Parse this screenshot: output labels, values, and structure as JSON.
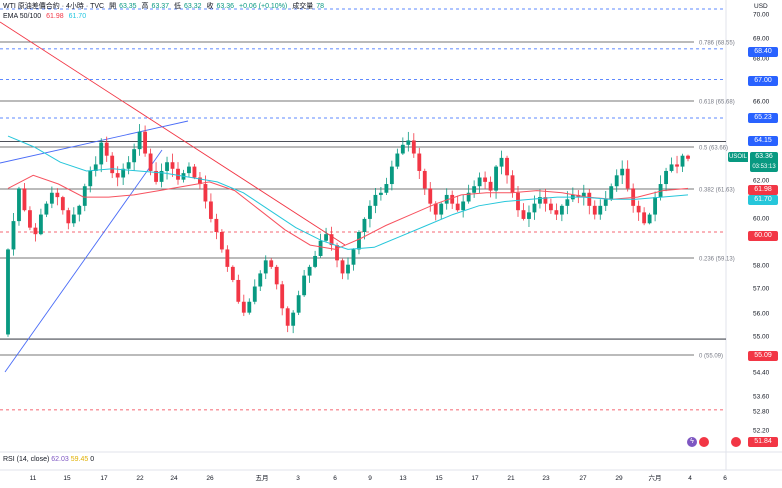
{
  "header": {
    "symbol_line": "WTI 原油差價合約 · 4小時 · TVC",
    "open_label": "開",
    "open": "63.35",
    "high_label": "高",
    "high": "63.37",
    "low_label": "低",
    "low": "63.32",
    "close_label": "收",
    "close": "63.36",
    "change": "+0.06 (+0.10%)",
    "volume_label": "成交量",
    "volume": "78",
    "ema_label": "EMA 50/100",
    "ema50": "61.98",
    "ema100": "61.70"
  },
  "rsi": {
    "label": "RSI (14, close)",
    "v1": "62.03",
    "v2": "59.45",
    "v3": "0"
  },
  "axis": {
    "currency": "USD",
    "x_ticks": [
      "11",
      "15",
      "17",
      "22",
      "24",
      "26",
      "五月",
      "3",
      "6",
      "9",
      "13",
      "15",
      "17",
      "21",
      "23",
      "27",
      "29",
      "六月",
      "4",
      "6"
    ],
    "y_ticks": [
      "70.00",
      "69.00",
      "68.00",
      "67.00",
      "66.00",
      "65.00",
      "64.00",
      "63.00",
      "62.00",
      "61.00",
      "60.00",
      "59.00",
      "58.00",
      "57.00",
      "56.00",
      "55.00",
      "54.40",
      "53.60",
      "52.80",
      "52.20"
    ]
  },
  "price_tags": {
    "t6840": "68.40",
    "t6700": "67.00",
    "t6523": "65.23",
    "t6415": "64.15",
    "symbol": "USOIL",
    "last": "63.36",
    "countdown": "03:53:13",
    "ema50": "61.98",
    "ema100": "61.70",
    "t6000": "60.00",
    "t5509": "55.09",
    "t5184": "51.84"
  },
  "fib_labels": {
    "f786": "0.786 (68.55)",
    "f618": "0.618 (65.68)",
    "f500": "0.5 (63.66)",
    "f382": "0.382 (61.63)",
    "f236": "0.236 (59.13)",
    "f0": "0 (55.09)"
  },
  "colors": {
    "up": "#089981",
    "down": "#f23645",
    "ema50": "#f7525f",
    "ema100": "#26c6da",
    "trendline": "#4a6cf7",
    "downtrend": "#f23645",
    "level_blue": "#2962ff",
    "fib": "#787b86"
  },
  "chart_data": {
    "type": "candlestick",
    "title": "WTI 原油差價合約 · 4小時 · TVC",
    "ylim": [
      51.0,
      70.8
    ],
    "x_ticks": [
      "11",
      "15",
      "17",
      "22",
      "24",
      "26",
      "五月",
      "3",
      "6",
      "9",
      "13",
      "15",
      "17",
      "21",
      "23",
      "27",
      "29",
      "六月",
      "4",
      "6"
    ],
    "horizontal_levels": [
      {
        "value": 68.4,
        "style": "dashed"
      },
      {
        "value": 67.0,
        "style": "dashed"
      },
      {
        "value": 65.23,
        "style": "dashed"
      },
      {
        "value": 64.15,
        "style": "solid"
      },
      {
        "value": 60.0,
        "style": "dashed"
      },
      {
        "value": 55.09,
        "style": "solid"
      },
      {
        "value": 51.84,
        "style": "dashed"
      }
    ],
    "fibonacci": [
      {
        "ratio": 0.786,
        "value": 68.55
      },
      {
        "ratio": 0.618,
        "value": 65.68
      },
      {
        "ratio": 0.5,
        "value": 63.66
      },
      {
        "ratio": 0.382,
        "value": 61.63
      },
      {
        "ratio": 0.236,
        "value": 59.13
      },
      {
        "ratio": 0,
        "value": 55.09
      }
    ],
    "closes": [
      59.2,
      60.5,
      62.0,
      61.0,
      60.2,
      59.9,
      60.8,
      61.3,
      61.8,
      61.6,
      61.0,
      60.4,
      60.8,
      61.2,
      62.1,
      62.8,
      63.1,
      64.1,
      63.5,
      62.7,
      62.5,
      62.9,
      63.2,
      63.8,
      64.6,
      63.6,
      62.8,
      62.3,
      62.8,
      63.2,
      62.9,
      62.4,
      62.7,
      63.0,
      62.5,
      62.2,
      61.4,
      60.6,
      60.0,
      59.2,
      58.4,
      57.8,
      56.8,
      56.3,
      56.8,
      57.5,
      58.1,
      58.7,
      58.4,
      57.6,
      56.5,
      55.7,
      56.3,
      57.1,
      58.0,
      58.4,
      58.9,
      59.6,
      59.9,
      59.4,
      58.7,
      58.1,
      58.5,
      59.2,
      60.0,
      60.6,
      61.2,
      61.7,
      61.8,
      62.2,
      63.0,
      63.6,
      64.0,
      64.2,
      63.6,
      62.8,
      62.0,
      61.3,
      60.8,
      61.3,
      61.7,
      61.3,
      61.0,
      61.4,
      61.8,
      62.1,
      62.5,
      62.3,
      61.9,
      63.0,
      63.4,
      62.6,
      61.8,
      61.0,
      60.6,
      60.9,
      61.3,
      61.6,
      61.3,
      61.0,
      60.8,
      61.2,
      61.5,
      61.7,
      61.6,
      61.8,
      61.2,
      60.8,
      61.2,
      61.5,
      62.1,
      62.6,
      62.9,
      62.0,
      61.2,
      60.9,
      60.4,
      60.8,
      61.6,
      62.2,
      62.8,
      63.1,
      63.0,
      63.5,
      63.36
    ],
    "ema_50": [
      62.0,
      62.6,
      62.2,
      61.6,
      61.6,
      61.7,
      61.9,
      62.1,
      62.3,
      61.9,
      61.0,
      60.1,
      59.4,
      59.2,
      59.7,
      60.3,
      60.8,
      61.3,
      61.7,
      61.8,
      61.8,
      61.9,
      61.8,
      61.6,
      61.5,
      61.6,
      61.9,
      62.0
    ],
    "ema_100": [
      64.4,
      63.9,
      63.2,
      62.8,
      62.9,
      62.8,
      62.7,
      62.5,
      62.3,
      61.8,
      61.0,
      60.2,
      59.6,
      59.2,
      59.3,
      59.8,
      60.3,
      60.8,
      61.2,
      61.4,
      61.5,
      61.6,
      61.6,
      61.5,
      61.5,
      61.6,
      61.7
    ]
  }
}
